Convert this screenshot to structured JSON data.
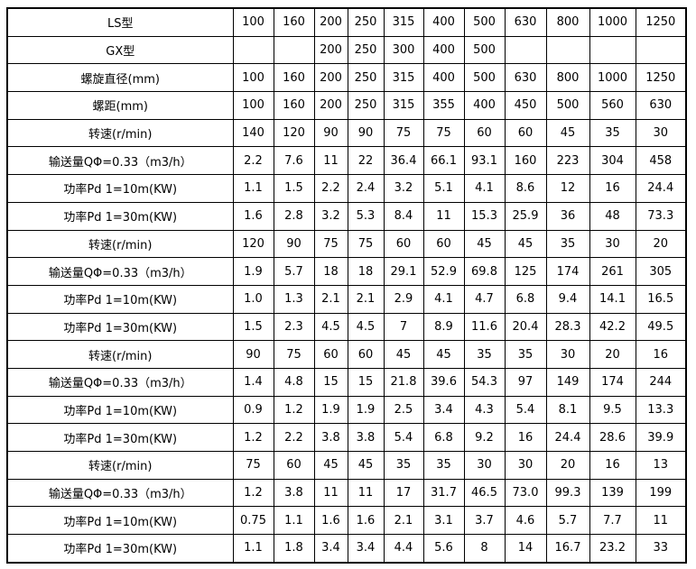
{
  "table": {
    "name": "screw-conveyor-spec-table",
    "border_color": "#000000",
    "background_color": "#ffffff",
    "text_color": "#000000",
    "rows": [
      {
        "label": "LS型",
        "values": [
          "100",
          "160",
          "200",
          "250",
          "315",
          "400",
          "500",
          "630",
          "800",
          "1000",
          "1250"
        ]
      },
      {
        "label": "GX型",
        "values": [
          "",
          "",
          "200",
          "250",
          "300",
          "400",
          "500",
          "",
          "",
          "",
          ""
        ]
      },
      {
        "label": "螺旋直径(mm)",
        "values": [
          "100",
          "160",
          "200",
          "250",
          "315",
          "400",
          "500",
          "630",
          "800",
          "1000",
          "1250"
        ]
      },
      {
        "label": "螺距(mm)",
        "values": [
          "100",
          "160",
          "200",
          "250",
          "315",
          "355",
          "400",
          "450",
          "500",
          "560",
          "630"
        ]
      },
      {
        "label": "转速(r/min)",
        "values": [
          "140",
          "120",
          "90",
          "90",
          "75",
          "75",
          "60",
          "60",
          "45",
          "35",
          "30"
        ]
      },
      {
        "label": "输送量QΦ=0.33（m3/h）",
        "values": [
          "2.2",
          "7.6",
          "11",
          "22",
          "36.4",
          "66.1",
          "93.1",
          "160",
          "223",
          "304",
          "458"
        ]
      },
      {
        "label": "功率Pd 1=10m(KW)",
        "values": [
          "1.1",
          "1.5",
          "2.2",
          "2.4",
          "3.2",
          "5.1",
          "4.1",
          "8.6",
          "12",
          "16",
          "24.4"
        ]
      },
      {
        "label": "功率Pd 1=30m(KW)",
        "values": [
          "1.6",
          "2.8",
          "3.2",
          "5.3",
          "8.4",
          "11",
          "15.3",
          "25.9",
          "36",
          "48",
          "73.3"
        ]
      },
      {
        "label": "转速(r/min)",
        "values": [
          "120",
          "90",
          "75",
          "75",
          "60",
          "60",
          "45",
          "45",
          "35",
          "30",
          "20"
        ]
      },
      {
        "label": "输送量QΦ=0.33（m3/h）",
        "values": [
          "1.9",
          "5.7",
          "18",
          "18",
          "29.1",
          "52.9",
          "69.8",
          "125",
          "174",
          "261",
          "305"
        ]
      },
      {
        "label": "功率Pd 1=10m(KW)",
        "values": [
          "1.0",
          "1.3",
          "2.1",
          "2.1",
          "2.9",
          "4.1",
          "4.7",
          "6.8",
          "9.4",
          "14.1",
          "16.5"
        ]
      },
      {
        "label": "功率Pd 1=30m(KW)",
        "values": [
          "1.5",
          "2.3",
          "4.5",
          "4.5",
          "7",
          "8.9",
          "11.6",
          "20.4",
          "28.3",
          "42.2",
          "49.5"
        ]
      },
      {
        "label": "转速(r/min)",
        "values": [
          "90",
          "75",
          "60",
          "60",
          "45",
          "45",
          "35",
          "35",
          "30",
          "20",
          "16"
        ]
      },
      {
        "label": "输送量QΦ=0.33（m3/h）",
        "values": [
          "1.4",
          "4.8",
          "15",
          "15",
          "21.8",
          "39.6",
          "54.3",
          "97",
          "149",
          "174",
          "244"
        ]
      },
      {
        "label": "功率Pd 1=10m(KW)",
        "values": [
          "0.9",
          "1.2",
          "1.9",
          "1.9",
          "2.5",
          "3.4",
          "4.3",
          "5.4",
          "8.1",
          "9.5",
          "13.3"
        ]
      },
      {
        "label": "功率Pd 1=30m(KW)",
        "values": [
          "1.2",
          "2.2",
          "3.8",
          "3.8",
          "5.4",
          "6.8",
          "9.2",
          "16",
          "24.4",
          "28.6",
          "39.9"
        ]
      },
      {
        "label": "转速(r/min)",
        "values": [
          "75",
          "60",
          "45",
          "45",
          "35",
          "35",
          "30",
          "30",
          "20",
          "16",
          "13"
        ]
      },
      {
        "label": "输送量QΦ=0.33（m3/h）",
        "values": [
          "1.2",
          "3.8",
          "11",
          "11",
          "17",
          "31.7",
          "46.5",
          "73.0",
          "99.3",
          "139",
          "199"
        ]
      },
      {
        "label": "功率Pd 1=10m(KW)",
        "values": [
          "0.75",
          "1.1",
          "1.6",
          "1.6",
          "2.1",
          "3.1",
          "3.7",
          "4.6",
          "5.7",
          "7.7",
          "11"
        ]
      },
      {
        "label": "功率Pd 1=30m(KW)",
        "values": [
          "1.1",
          "1.8",
          "3.4",
          "3.4",
          "4.4",
          "5.6",
          "8",
          "14",
          "16.7",
          "23.2",
          "33"
        ]
      }
    ]
  }
}
